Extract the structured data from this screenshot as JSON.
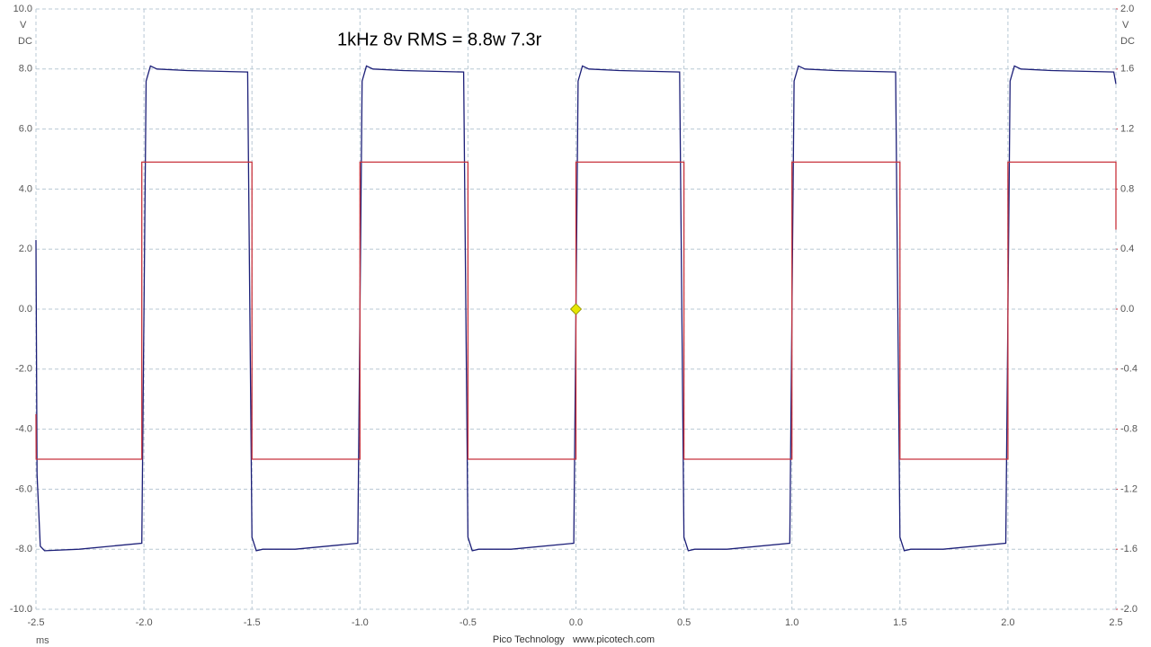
{
  "chart_data": {
    "type": "line",
    "title": "1kHz 8v RMS = 8.8w 7.3r",
    "y_units": "V",
    "y_coupling": "DC",
    "y2_units": "V",
    "y2_coupling": "DC",
    "x_units": "ms",
    "footer": "Pico Technology   www.picotech.com",
    "grid": true,
    "xlim": [
      -2.5,
      2.5
    ],
    "xticks": [
      -2.5,
      {
        "value": -2,
        "label": "-2.0"
      },
      -1.5,
      {
        "value": -1,
        "label": "-1.0"
      },
      -0.5,
      {
        "value": 0,
        "label": "0.0"
      },
      0.5,
      {
        "value": 1,
        "label": "1.0"
      },
      1.5,
      {
        "value": 2,
        "label": "2.0"
      },
      2.5
    ],
    "ylim": [
      -10,
      10
    ],
    "yticks": [
      {
        "value": -10,
        "label": "-10.0"
      },
      {
        "value": -8,
        "label": "-8.0"
      },
      {
        "value": -6,
        "label": "-6.0"
      },
      {
        "value": -4,
        "label": "-4.0"
      },
      {
        "value": -2,
        "label": "-2.0"
      },
      {
        "value": 0,
        "label": "0.0"
      },
      {
        "value": 2,
        "label": "2.0"
      },
      {
        "value": 4,
        "label": "4.0"
      },
      {
        "value": 6,
        "label": "6.0"
      },
      {
        "value": 8,
        "label": "8.0"
      },
      {
        "value": 10,
        "label": "10.0"
      }
    ],
    "y2lim": [
      -2,
      2
    ],
    "y2ticks": [
      {
        "value": -2,
        "label": "-2.0"
      },
      -1.6,
      -1.2,
      -0.8,
      -0.4,
      {
        "value": 0,
        "label": "0.0"
      },
      0.4,
      0.8,
      1.2,
      1.6,
      {
        "value": 2,
        "label": "2.0"
      }
    ],
    "series": [
      {
        "color": "#1c1f78",
        "x": [
          -2.5,
          -2.495,
          -2.48,
          -2.46,
          -2.3,
          -2.01,
          -1.99,
          -1.97,
          -1.94,
          -1.8,
          -1.52,
          -1.5,
          -1.48,
          -1.45,
          -1.3,
          -1.01,
          -0.99,
          -0.97,
          -0.94,
          -0.8,
          -0.52,
          -0.5,
          -0.48,
          -0.45,
          -0.3,
          -0.01,
          0.01,
          0.03,
          0.06,
          0.2,
          0.48,
          0.5,
          0.52,
          0.55,
          0.7,
          0.99,
          1.01,
          1.03,
          1.06,
          1.2,
          1.48,
          1.5,
          1.52,
          1.55,
          1.7,
          1.99,
          2.01,
          2.03,
          2.06,
          2.2,
          2.49,
          2.5
        ],
        "values": [
          2.3,
          -5.5,
          -7.9,
          -8.05,
          -8.0,
          -7.8,
          7.6,
          8.1,
          8.0,
          7.95,
          7.9,
          -7.6,
          -8.05,
          -8.0,
          -8.0,
          -7.8,
          7.6,
          8.1,
          8.0,
          7.95,
          7.9,
          -7.6,
          -8.05,
          -8.0,
          -8.0,
          -7.8,
          7.6,
          8.1,
          8.0,
          7.95,
          7.9,
          -7.6,
          -8.05,
          -8.0,
          -8.0,
          -7.8,
          7.6,
          8.1,
          8.0,
          7.95,
          7.9,
          -7.6,
          -8.05,
          -8.0,
          -8.0,
          -7.8,
          7.6,
          8.1,
          8.0,
          7.95,
          7.9,
          7.5
        ]
      },
      {
        "color": "#c8323c",
        "axis": "y2",
        "x": [
          -2.5,
          -2.499,
          -2.01,
          -2.01,
          -1.5,
          -1.5,
          -1.0,
          -1.0,
          -0.5,
          -0.5,
          0.0,
          0.0,
          0.5,
          0.5,
          1.0,
          1.0,
          1.5,
          1.5,
          2.0,
          2.0,
          2.5,
          2.5
        ],
        "values": [
          -0.7,
          -1.0,
          -1.0,
          0.98,
          0.98,
          -1.0,
          -1.0,
          0.98,
          0.98,
          -1.0,
          -1.0,
          0.98,
          0.98,
          -1.0,
          -1.0,
          0.98,
          0.98,
          -1.0,
          -1.0,
          0.98,
          0.98,
          0.53
        ]
      }
    ],
    "markers": [
      {
        "x": 0,
        "y": 0,
        "color": "#e6e600"
      }
    ]
  }
}
